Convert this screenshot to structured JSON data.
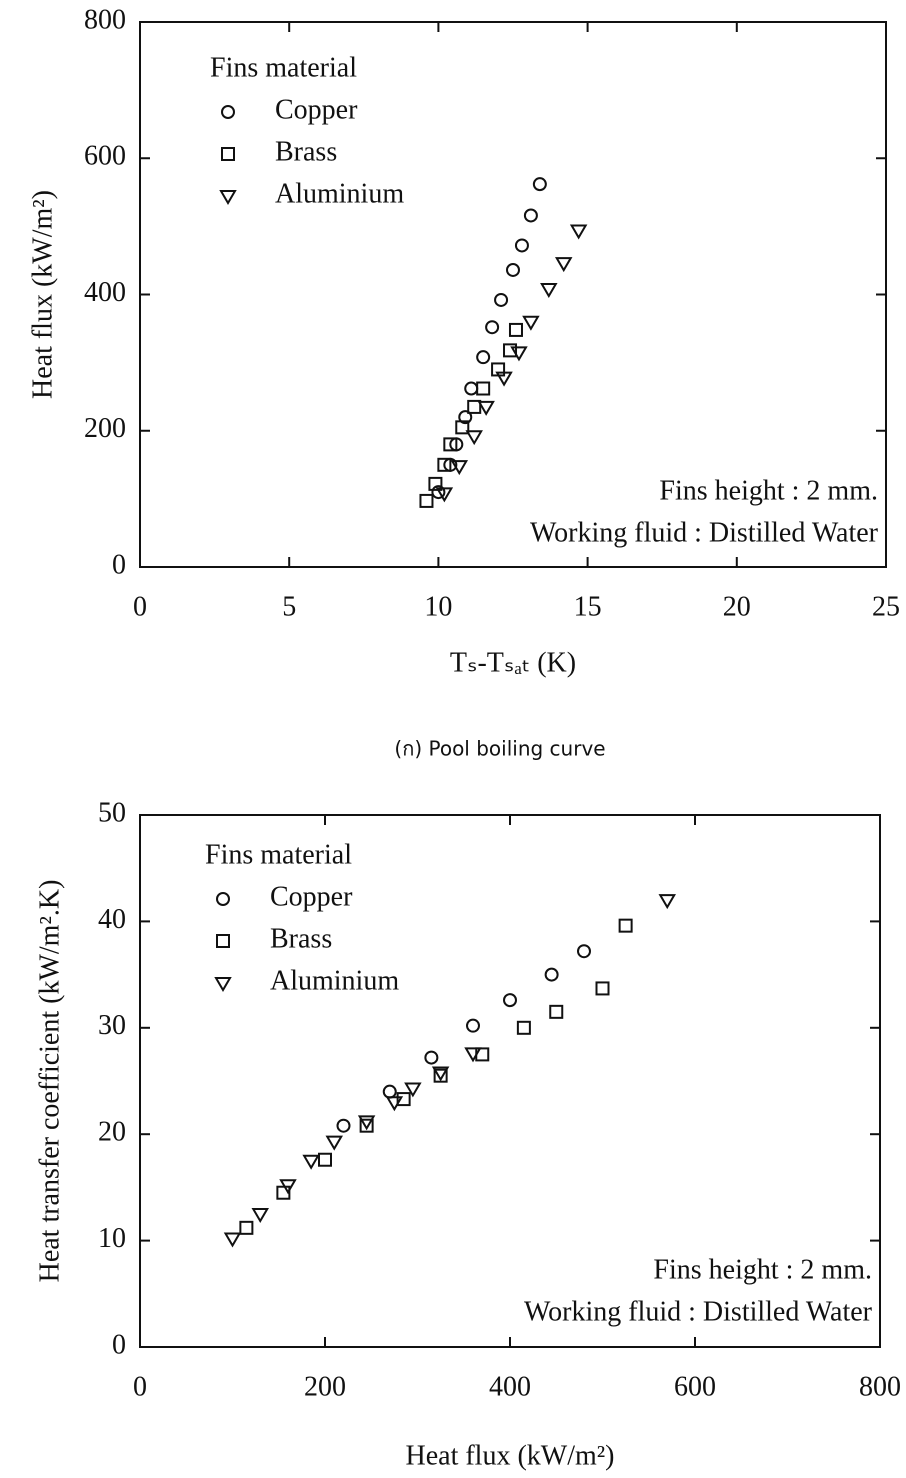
{
  "chart_data": [
    {
      "type": "scatter",
      "xlabel": "Tₛ-Tₛₐₜ (K)",
      "ylabel": "Heat flux (kW/m²)",
      "xlim": [
        0,
        25
      ],
      "xticks": [
        0,
        5,
        10,
        15,
        20,
        25
      ],
      "ylim": [
        0,
        800
      ],
      "yticks": [
        0,
        200,
        400,
        600,
        800
      ],
      "legend_title": "Fins material",
      "legend": "upper left",
      "annotations": [
        "Fins height : 2 mm.",
        "Working fluid : Distilled Water"
      ],
      "caption": "(ก) Pool  boiling curve",
      "series": [
        {
          "name": "Copper",
          "marker": "circle",
          "color": "#111",
          "x": [
            10.0,
            10.4,
            10.6,
            10.9,
            11.1,
            11.5,
            11.8,
            12.1,
            12.5,
            12.8,
            13.1,
            13.4
          ],
          "values": [
            110,
            150,
            180,
            220,
            262,
            308,
            352,
            392,
            436,
            472,
            516,
            562
          ]
        },
        {
          "name": "Brass",
          "marker": "square",
          "color": "#111",
          "x": [
            9.6,
            9.9,
            10.2,
            10.4,
            10.8,
            11.2,
            11.5,
            12.0,
            12.4,
            12.6
          ],
          "values": [
            97,
            122,
            150,
            180,
            205,
            235,
            262,
            290,
            318,
            348
          ]
        },
        {
          "name": "Aluminium",
          "marker": "triangle-down",
          "color": "#111",
          "x": [
            10.2,
            10.7,
            11.2,
            11.6,
            12.2,
            12.7,
            13.1,
            13.7,
            14.2,
            14.7
          ],
          "values": [
            108,
            148,
            192,
            235,
            278,
            315,
            360,
            408,
            446,
            494
          ]
        }
      ]
    },
    {
      "type": "scatter",
      "xlabel": "Heat flux (kW/m²)",
      "ylabel": "Heat transfer coefficient (kW/m².K)",
      "xlim": [
        0,
        800
      ],
      "xticks": [
        0,
        200,
        400,
        600,
        800
      ],
      "ylim": [
        0,
        50
      ],
      "yticks": [
        0,
        10,
        20,
        30,
        40,
        50
      ],
      "legend_title": "Fins material",
      "legend": "upper left",
      "annotations": [
        "Fins height : 2 mm.",
        "Working fluid : Distilled Water"
      ],
      "series": [
        {
          "name": "Copper",
          "marker": "circle",
          "color": "#111",
          "x": [
            220,
            270,
            315,
            360,
            400,
            445,
            480
          ],
          "values": [
            20.8,
            24.0,
            27.2,
            30.2,
            32.6,
            35.0,
            37.2
          ]
        },
        {
          "name": "Brass",
          "marker": "square",
          "color": "#111",
          "x": [
            115,
            155,
            200,
            245,
            285,
            325,
            370,
            415,
            450,
            500,
            525
          ],
          "values": [
            11.2,
            14.5,
            17.6,
            20.8,
            23.3,
            25.5,
            27.5,
            30.0,
            31.5,
            33.7,
            39.6
          ]
        },
        {
          "name": "Aluminium",
          "marker": "triangle-down",
          "color": "#111",
          "x": [
            100,
            130,
            160,
            185,
            210,
            245,
            275,
            295,
            325,
            360,
            570
          ],
          "values": [
            10.2,
            12.5,
            15.2,
            17.5,
            19.3,
            21.2,
            23.0,
            24.3,
            25.8,
            27.6,
            42.0
          ]
        }
      ]
    }
  ]
}
